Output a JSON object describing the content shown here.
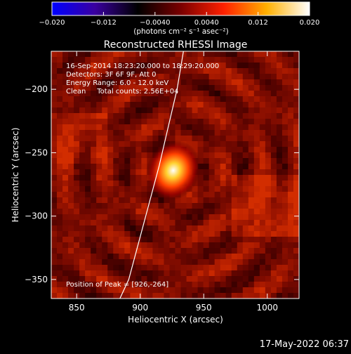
{
  "colorbar": {
    "ticks": [
      "−0.020",
      "−0.012",
      "−0.0040",
      "0.0040",
      "0.012",
      "0.020"
    ],
    "tick_values": [
      -0.02,
      -0.012,
      -0.004,
      0.004,
      0.012,
      0.02
    ],
    "range": [
      -0.02,
      0.02
    ],
    "unit_label": "(photons cm⁻² s⁻¹ asec⁻²)",
    "gradient_colors": [
      "#0000ff",
      "#3a00a0",
      "#000000",
      "#7a0000",
      "#ff2000",
      "#ffb000",
      "#ffffff"
    ]
  },
  "header": {
    "line1": "16-Sep-2014 18:23:20.000 to 18:29:20.000",
    "line2": "Detectors: 3F 6F 9F, Att 0",
    "line3": "Energy Range: 6.0 - 12.0 keV",
    "line4": "Clean     Total counts: 2.56E+04"
  },
  "footer": {
    "timestamp": "17-May-2022 06:37",
    "peak_text": "Position of Peak = [926,-264]"
  },
  "chart_data": {
    "type": "heatmap",
    "title": "Reconstructed RHESSI Image",
    "xlabel": "Heliocentric X (arcsec)",
    "ylabel": "Heliocentric Y (arcsec)",
    "xlim": [
      830,
      1025
    ],
    "ylim": [
      -365,
      -170
    ],
    "xticks": [
      850,
      900,
      950,
      1000
    ],
    "xtick_labels": [
      "850",
      "900",
      "950",
      "1000"
    ],
    "yticks": [
      -200,
      -250,
      -300,
      -350
    ],
    "ytick_labels": [
      "−200",
      "−250",
      "−300",
      "−350"
    ],
    "peak": [
      926,
      -264
    ],
    "peak_flux_max": 0.02,
    "limb_curve": [
      [
        934,
        -170
      ],
      [
        929,
        -200
      ],
      [
        922,
        -230
      ],
      [
        915,
        -260
      ],
      [
        907,
        -290
      ],
      [
        899,
        -320
      ],
      [
        891,
        -350
      ],
      [
        884,
        -365
      ]
    ],
    "limb_color": "#ffffff",
    "grid": false
  }
}
